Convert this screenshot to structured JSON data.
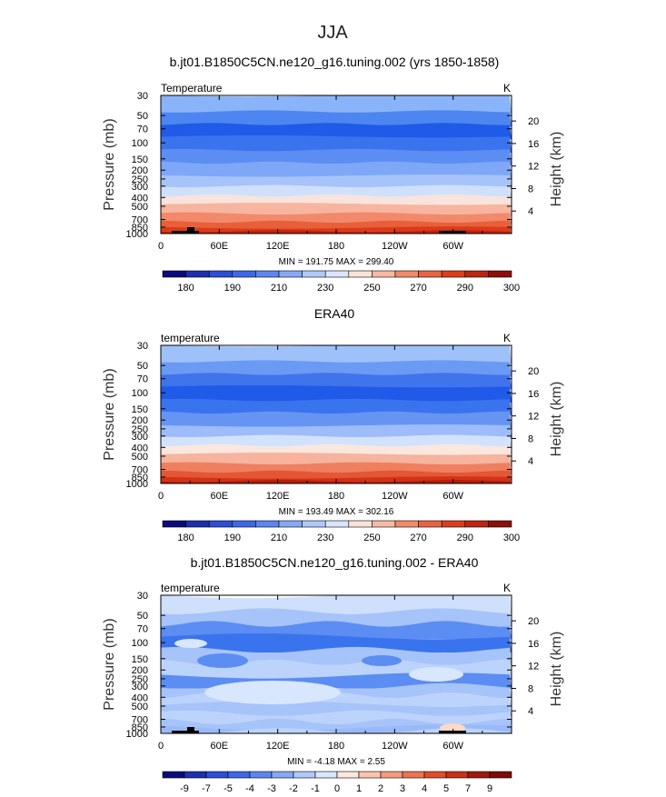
{
  "figure": {
    "title": "JJA"
  },
  "chart_data": [
    {
      "type": "heatmap",
      "title": "b.jt01.B1850C5CN.ne120_g16.tuning.002 (yrs 1850-1858)",
      "left_label": "Temperature",
      "units": "K",
      "ylabel": "Pressure  (mb)",
      "ylabel_right": "Height  (km)",
      "y_ticks": [
        30,
        50,
        70,
        100,
        150,
        200,
        250,
        300,
        400,
        500,
        700,
        850,
        1000
      ],
      "height_ticks": [
        4,
        8,
        12,
        16,
        20
      ],
      "x_tick_labels": [
        "0",
        "60E",
        "120E",
        "180",
        "120W",
        "60W"
      ],
      "stats": "MIN =  191.75   MAX =  299.40",
      "colorbar_labels": [
        "180",
        "190",
        "210",
        "230",
        "250",
        "270",
        "290",
        "300"
      ],
      "band_colors": [
        "#8ab4f9",
        "#4d86f0",
        "#1f5be8",
        "#3a73ee",
        "#5b8df2",
        "#7ea7f7",
        "#a6c4fa",
        "#cfe0fd",
        "#f8e4dc",
        "#f7b5a0",
        "#f2896a",
        "#e8603a",
        "#dc3a1a",
        "#c2230e"
      ],
      "min": 191.75,
      "max": 299.4
    },
    {
      "type": "heatmap",
      "title": "ERA40",
      "left_label": "temperature",
      "units": "K",
      "ylabel": "Pressure  (mb)",
      "ylabel_right": "Height  (km)",
      "y_ticks": [
        30,
        50,
        70,
        100,
        150,
        200,
        250,
        300,
        400,
        500,
        700,
        850,
        1000
      ],
      "height_ticks": [
        4,
        8,
        12,
        16,
        20
      ],
      "x_tick_labels": [
        "0",
        "60E",
        "120E",
        "180",
        "120W",
        "60W"
      ],
      "stats": "MIN =  193.49   MAX =  302.16",
      "colorbar_labels": [
        "180",
        "190",
        "210",
        "230",
        "250",
        "270",
        "290",
        "300"
      ],
      "band_colors": [
        "#9ec1fa",
        "#6a9af4",
        "#3f74ed",
        "#1f5be8",
        "#3a73ee",
        "#6594f3",
        "#9dbcf9",
        "#d2e2fd",
        "#fae7de",
        "#f6b39d",
        "#ef7f5e",
        "#e45634",
        "#d23318",
        "#b41d0a"
      ],
      "min": 193.49,
      "max": 302.16
    },
    {
      "type": "heatmap",
      "title": "b.jt01.B1850C5CN.ne120_g16.tuning.002 - ERA40",
      "left_label": "temperature",
      "units": "K",
      "ylabel": "Pressure  (mb)",
      "ylabel_right": "Height  (km)",
      "y_ticks": [
        30,
        50,
        70,
        100,
        150,
        200,
        250,
        300,
        400,
        500,
        700,
        850,
        1000
      ],
      "height_ticks": [
        4,
        8,
        12,
        16,
        20
      ],
      "x_tick_labels": [
        "0",
        "60E",
        "120E",
        "180",
        "120W",
        "60W"
      ],
      "stats": "MIN =   -4.18   MAX =    2.55",
      "colorbar_labels": [
        "-9",
        "-7",
        "-5",
        "-4",
        "-3",
        "-2",
        "-1",
        "0",
        "1",
        "2",
        "3",
        "4",
        "5",
        "7",
        "9"
      ],
      "band_colors": [
        "#cfe0fd",
        "#a6c4fa",
        "#5b8df2",
        "#3a73ee",
        "#a6c4fa",
        "#bcd3fb",
        "#5b8df2",
        "#a6c4fa",
        "#bcd3fb",
        "#a6c4fa",
        "#bcd3fb",
        "#a6c4fa",
        "#9ab9f8",
        "#bcd3fb"
      ],
      "min": -4.18,
      "max": 2.55
    }
  ],
  "colorbar_colors_abs": [
    "#0b0b80",
    "#1c2fb0",
    "#2b4fd8",
    "#3b68ea",
    "#5b86f2",
    "#86a8f7",
    "#b0c9fb",
    "#d9e6fd",
    "#fbe3d8",
    "#f7b9a2",
    "#f28b6a",
    "#ea6340",
    "#dc3d1c",
    "#bc2410",
    "#8c0f08"
  ],
  "colorbar_colors_diff": [
    "#0b0b80",
    "#1c2fb0",
    "#2b4fd8",
    "#3b68ea",
    "#5b86f2",
    "#86a8f7",
    "#b0c9fb",
    "#d9e6fd",
    "#fde7dd",
    "#fbc4ad",
    "#f59a7a",
    "#ee7450",
    "#e14e2a",
    "#c93015",
    "#a01a0b",
    "#7d0c06"
  ]
}
